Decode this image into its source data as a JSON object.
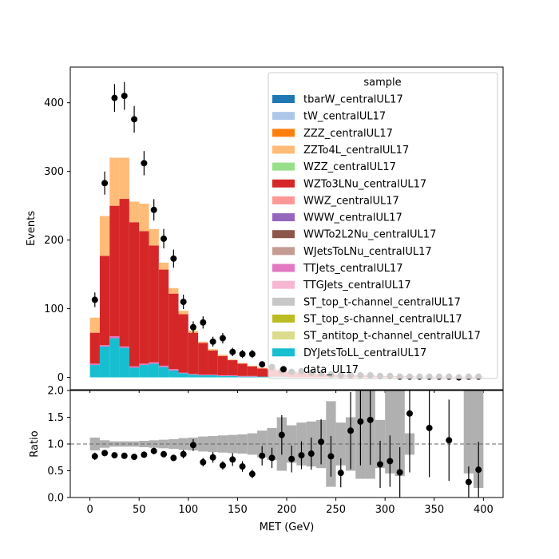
{
  "chart_data": [
    {
      "type": "bar",
      "xlabel": "",
      "ylabel": "Events",
      "xlim": [
        -20,
        420
      ],
      "ylim": [
        -18,
        452
      ],
      "yticks": [
        0,
        100,
        200,
        300,
        400
      ],
      "legend": {
        "title": "sample",
        "placement": "top-right",
        "entries": [
          {
            "label": "tbarW_centralUL17",
            "color": "#1f77b4",
            "kind": "patch"
          },
          {
            "label": "tW_centralUL17",
            "color": "#aec7e8",
            "kind": "patch"
          },
          {
            "label": "ZZZ_centralUL17",
            "color": "#ff7f0e",
            "kind": "patch"
          },
          {
            "label": "ZZTo4L_centralUL17",
            "color": "#ffbb78",
            "kind": "patch"
          },
          {
            "label": "WZZ_centralUL17",
            "color": "#98df8a",
            "kind": "patch"
          },
          {
            "label": "WZTo3LNu_centralUL17",
            "color": "#d62728",
            "kind": "patch"
          },
          {
            "label": "WWZ_centralUL17",
            "color": "#ff9896",
            "kind": "patch"
          },
          {
            "label": "WWW_centralUL17",
            "color": "#9467bd",
            "kind": "patch"
          },
          {
            "label": "WWTo2L2Nu_centralUL17",
            "color": "#8c564b",
            "kind": "patch"
          },
          {
            "label": "WJetsToLNu_centralUL17",
            "color": "#c49c94",
            "kind": "patch"
          },
          {
            "label": "TTJets_centralUL17",
            "color": "#e377c2",
            "kind": "patch"
          },
          {
            "label": "TTGJets_centralUL17",
            "color": "#f7b6d2",
            "kind": "patch"
          },
          {
            "label": "ST_top_t-channel_centralUL17",
            "color": "#c7c7c7",
            "kind": "patch"
          },
          {
            "label": "ST_top_s-channel_centralUL17",
            "color": "#bcbd22",
            "kind": "patch"
          },
          {
            "label": "ST_antitop_t-channel_centralUL17",
            "color": "#dbdb8d",
            "kind": "patch"
          },
          {
            "label": "DYJetsToLL_centralUL17",
            "color": "#17becf",
            "kind": "patch"
          },
          {
            "label": "data_UL17",
            "color": "#000000",
            "kind": "marker"
          }
        ]
      },
      "bin_edges": [
        0,
        10,
        20,
        30,
        40,
        50,
        60,
        70,
        80,
        90,
        100,
        110,
        120,
        130,
        140,
        150,
        160,
        170,
        180,
        190,
        200,
        210,
        220,
        230,
        240,
        250,
        260,
        270,
        280,
        290,
        300,
        310,
        320,
        330,
        340,
        350,
        360,
        370,
        380,
        390,
        400
      ],
      "mc_stack": {
        "DYJetsToLL_centralUL17": [
          18,
          45,
          57,
          43,
          14,
          18,
          20,
          15,
          10,
          6,
          4,
          3,
          3,
          2,
          2,
          1,
          1,
          1,
          1,
          1,
          0,
          0,
          0,
          0,
          0,
          0,
          0,
          0,
          0,
          0,
          0,
          0,
          0,
          0,
          0,
          0,
          0,
          0,
          0,
          0
        ],
        "TTJets_centralUL17": [
          2,
          2,
          3,
          2,
          2,
          2,
          2,
          2,
          2,
          1,
          1,
          1,
          1,
          1,
          1,
          1,
          1,
          0,
          0,
          0,
          0,
          0,
          0,
          0,
          0,
          0,
          0,
          0,
          0,
          0,
          0,
          0,
          0,
          0,
          0,
          0,
          0,
          0,
          0,
          0
        ],
        "WZTo3LNu_centralUL17": [
          45,
          130,
          190,
          215,
          210,
          193,
          170,
          140,
          110,
          85,
          60,
          46,
          35,
          28,
          22,
          18,
          14,
          12,
          11,
          9,
          8,
          7,
          6,
          5,
          4,
          4,
          3,
          3,
          3,
          2,
          2,
          2,
          2,
          1,
          1,
          1,
          1,
          1,
          1,
          1
        ],
        "ZZTo4L_centralUL17": [
          22,
          58,
          70,
          60,
          30,
          40,
          24,
          10,
          8,
          5,
          3,
          2,
          2,
          2,
          1,
          1,
          1,
          1,
          1,
          1,
          1,
          0,
          0,
          0,
          0,
          0,
          0,
          0,
          0,
          0,
          0,
          0,
          0,
          0,
          0,
          0,
          0,
          0,
          0,
          0
        ]
      },
      "data": {
        "name": "data_UL17",
        "x": [
          5,
          15,
          25,
          35,
          45,
          55,
          65,
          75,
          85,
          95,
          105,
          115,
          125,
          135,
          145,
          155,
          165,
          175,
          185,
          195,
          205,
          215,
          225,
          235,
          245,
          255,
          265,
          275,
          285,
          295,
          305,
          315,
          325,
          335,
          345,
          355,
          365,
          375,
          385,
          395
        ],
        "y": [
          113,
          283,
          407,
          410,
          376,
          312,
          244,
          202,
          173,
          110,
          73,
          80,
          52,
          57,
          37,
          34,
          34,
          19,
          15,
          10,
          8,
          9,
          7,
          6,
          4,
          3,
          3,
          3,
          3,
          2,
          2,
          1,
          1,
          1,
          1,
          1,
          1,
          0,
          1,
          1
        ]
      }
    },
    {
      "type": "scatter",
      "xlabel": "MET (GeV)",
      "ylabel": "Ratio",
      "xlim": [
        -20,
        420
      ],
      "ylim": [
        0,
        2
      ],
      "xticks": [
        0,
        50,
        100,
        150,
        200,
        250,
        300,
        350,
        400
      ],
      "yticks": [
        0.0,
        0.5,
        1.0,
        1.5,
        2.0
      ],
      "reference_line": 1.0,
      "uncertainty_band": {
        "bin_edges": [
          0,
          10,
          20,
          30,
          40,
          50,
          60,
          70,
          80,
          90,
          100,
          110,
          120,
          130,
          140,
          150,
          160,
          170,
          180,
          190,
          200,
          210,
          220,
          230,
          240,
          250,
          260,
          270,
          280,
          290,
          300,
          310,
          320,
          330,
          340,
          350,
          360,
          370,
          380,
          390,
          400
        ],
        "low": [
          0.88,
          0.93,
          0.95,
          0.95,
          0.95,
          0.94,
          0.93,
          0.92,
          0.91,
          0.89,
          0.88,
          0.86,
          0.85,
          0.84,
          0.83,
          0.82,
          0.8,
          0.75,
          0.7,
          0.5,
          0.65,
          0.6,
          0.58,
          0.55,
          0.2,
          0.6,
          0.5,
          0.35,
          0.35,
          0.55,
          0.45,
          0.4,
          0.8,
          1.0,
          1.0,
          1.0,
          1.0,
          1.0,
          0.45,
          0.18
        ],
        "high": [
          1.12,
          1.07,
          1.05,
          1.05,
          1.05,
          1.06,
          1.07,
          1.08,
          1.09,
          1.11,
          1.12,
          1.14,
          1.15,
          1.16,
          1.17,
          1.18,
          1.2,
          1.25,
          1.3,
          1.5,
          1.35,
          1.4,
          1.42,
          1.45,
          1.8,
          1.4,
          1.5,
          2.0,
          2.0,
          1.45,
          2.0,
          2.0,
          1.2,
          1.0,
          1.0,
          1.0,
          1.0,
          1.0,
          2.0,
          2.0
        ]
      },
      "points": {
        "x": [
          5,
          15,
          25,
          35,
          45,
          55,
          65,
          75,
          85,
          95,
          105,
          115,
          125,
          135,
          145,
          155,
          165,
          175,
          185,
          195,
          205,
          215,
          225,
          235,
          245,
          255,
          265,
          275,
          285,
          295,
          305,
          315,
          325,
          345,
          365,
          385,
          395
        ],
        "y": [
          0.77,
          0.83,
          0.79,
          0.78,
          0.76,
          0.8,
          0.87,
          0.81,
          0.74,
          0.81,
          0.98,
          0.66,
          0.75,
          0.6,
          0.71,
          0.58,
          0.44,
          0.78,
          0.74,
          1.17,
          0.72,
          0.79,
          0.82,
          1.04,
          0.77,
          0.46,
          1.25,
          1.42,
          1.45,
          0.62,
          0.68,
          0.47,
          1.57,
          1.3,
          1.07,
          0.29,
          0.52
        ],
        "err": [
          0.07,
          0.05,
          0.04,
          0.04,
          0.04,
          0.05,
          0.06,
          0.06,
          0.06,
          0.08,
          0.11,
          0.08,
          0.1,
          0.08,
          0.12,
          0.1,
          0.08,
          0.18,
          0.19,
          0.37,
          0.25,
          0.26,
          0.3,
          0.42,
          0.38,
          0.27,
          0.72,
          0.82,
          0.84,
          0.44,
          0.48,
          0.47,
          1.1,
          0.92,
          0.76,
          0.29,
          0.52
        ]
      }
    }
  ]
}
